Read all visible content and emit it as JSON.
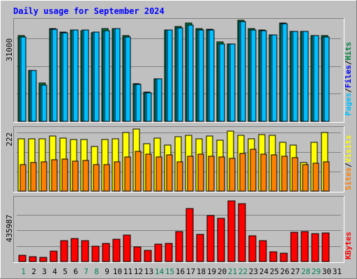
{
  "chart_data": [
    {
      "type": "bar",
      "title": "Daily usage for September 2024",
      "categories": [
        "1",
        "2",
        "3",
        "4",
        "5",
        "6",
        "7",
        "8",
        "9",
        "10",
        "11",
        "12",
        "13",
        "14",
        "15",
        "16",
        "17",
        "18",
        "19",
        "20",
        "21",
        "22",
        "23",
        "24",
        "25",
        "26",
        "27",
        "28",
        "29",
        "30",
        "31"
      ],
      "weekend_days": [
        "1",
        "7",
        "8",
        "14",
        "15",
        "21",
        "22",
        "28",
        "29"
      ],
      "y_tick_label": "31000",
      "y_tick_value": 31000,
      "ylim": [
        0,
        38000
      ],
      "legend": [
        "Pages",
        "Files",
        "Hits"
      ],
      "series": [
        {
          "name": "Hits",
          "color": "#008040",
          "values": [
            32000,
            19000,
            14200,
            34500,
            33200,
            34200,
            33800,
            33000,
            34500,
            34500,
            32000,
            14000,
            11000,
            16000,
            34200,
            35500,
            36600,
            34500,
            34300,
            29600,
            29000,
            37800,
            34600,
            34100,
            32400,
            36800,
            33500,
            33500,
            31900,
            32000,
            null
          ]
        },
        {
          "name": "Files",
          "color": "#00c0ff",
          "values": [
            31500,
            19000,
            13600,
            34400,
            33000,
            34000,
            34000,
            33400,
            33800,
            34500,
            31500,
            13700,
            10800,
            15900,
            34000,
            34800,
            35900,
            34000,
            34200,
            29000,
            28800,
            37200,
            34100,
            33900,
            32400,
            36400,
            33600,
            33600,
            31900,
            31600,
            null
          ]
        },
        {
          "name": "Pages",
          "color": "#00c0ff",
          "values": [
            31500,
            19000,
            13600,
            34400,
            33000,
            34000,
            34000,
            33400,
            33800,
            34500,
            31500,
            13700,
            10800,
            15900,
            34000,
            34800,
            35900,
            34000,
            34200,
            29000,
            28800,
            37200,
            34100,
            33900,
            32400,
            36400,
            33600,
            33600,
            31900,
            31600,
            null
          ]
        }
      ]
    },
    {
      "type": "bar",
      "categories": [
        "1",
        "2",
        "3",
        "4",
        "5",
        "6",
        "7",
        "8",
        "9",
        "10",
        "11",
        "12",
        "13",
        "14",
        "15",
        "16",
        "17",
        "18",
        "19",
        "20",
        "21",
        "22",
        "23",
        "24",
        "25",
        "26",
        "27",
        "28",
        "29",
        "30",
        "31"
      ],
      "y_tick_label": "222",
      "y_tick_value": 222,
      "ylim": [
        0,
        240
      ],
      "legend": [
        "Sites",
        "Visits"
      ],
      "series": [
        {
          "name": "Visits",
          "color": "#ffff00",
          "values": [
            197,
            197,
            198,
            209,
            200,
            195,
            196,
            169,
            195,
            197,
            221,
            236,
            180,
            200,
            175,
            205,
            212,
            198,
            208,
            193,
            228,
            210,
            197,
            213,
            210,
            185,
            175,
            108,
            185,
            222,
            null
          ]
        },
        {
          "name": "Sites",
          "color": "#ff8000",
          "values": [
            100,
            108,
            111,
            119,
            121,
            113,
            117,
            100,
            101,
            112,
            130,
            151,
            140,
            130,
            136,
            112,
            133,
            140,
            133,
            130,
            123,
            143,
            158,
            140,
            137,
            133,
            127,
            100,
            105,
            110,
            null
          ]
        }
      ]
    },
    {
      "type": "bar",
      "categories": [
        "1",
        "2",
        "3",
        "4",
        "5",
        "6",
        "7",
        "8",
        "9",
        "10",
        "11",
        "12",
        "13",
        "14",
        "15",
        "16",
        "17",
        "18",
        "19",
        "20",
        "21",
        "22",
        "23",
        "24",
        "25",
        "26",
        "27",
        "28",
        "29",
        "30",
        "31"
      ],
      "y_tick_label": "435987",
      "y_tick_value": 435987,
      "ylim": [
        0,
        595000
      ],
      "legend": [
        "KBytes"
      ],
      "series": [
        {
          "name": "KBytes",
          "color": "#ff0000",
          "values": [
            55000,
            45000,
            40000,
            95000,
            195000,
            215000,
            195000,
            145000,
            170000,
            210000,
            245000,
            135000,
            105000,
            160000,
            170000,
            280000,
            490000,
            255000,
            425000,
            400000,
            560000,
            535000,
            240000,
            195000,
            90000,
            75000,
            270000,
            275000,
            260000,
            265000,
            null
          ]
        }
      ]
    }
  ]
}
